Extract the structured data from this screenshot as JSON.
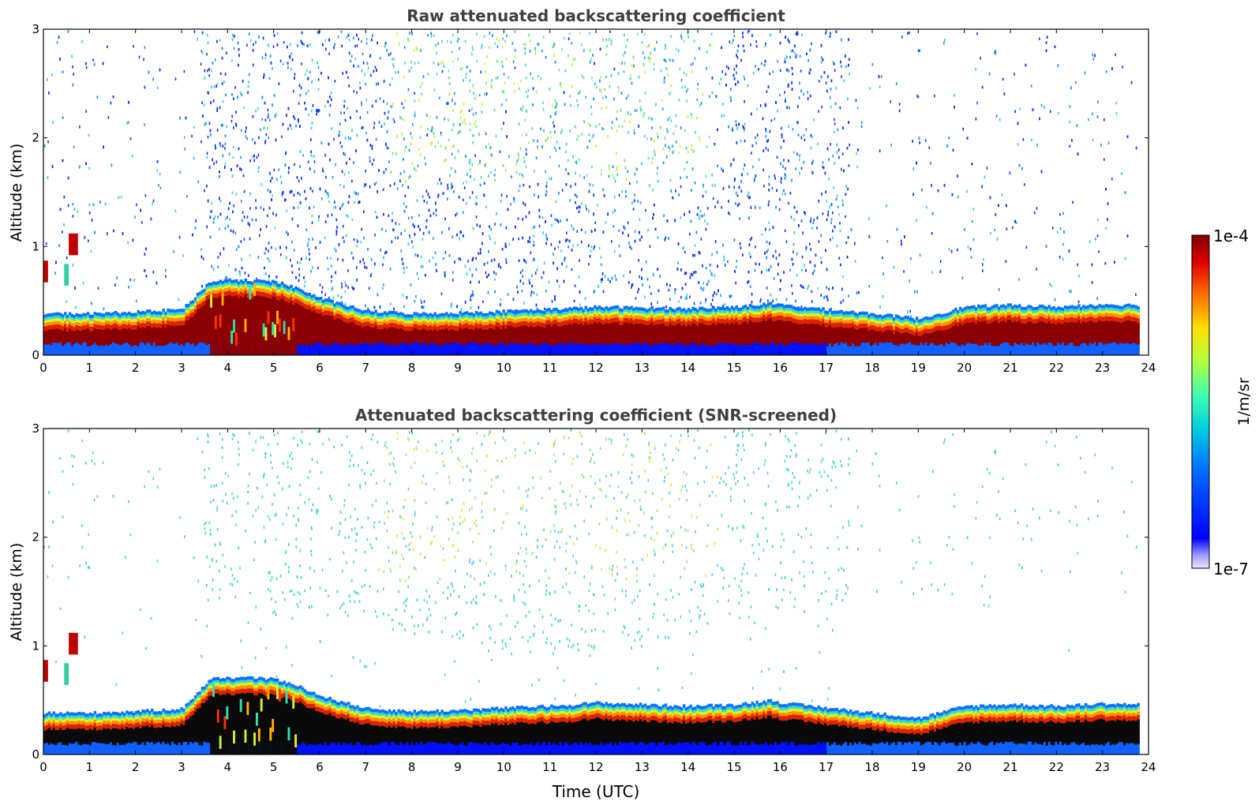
{
  "chart_data": [
    {
      "type": "heatmap",
      "title": "Raw attenuated backscattering coefficient",
      "xlabel": "",
      "ylabel": "Altitude (km)",
      "xlim": [
        0,
        24
      ],
      "ylim": [
        0,
        3
      ],
      "x_ticks": [
        "0",
        "1",
        "2",
        "3",
        "4",
        "5",
        "6",
        "7",
        "8",
        "9",
        "10",
        "11",
        "12",
        "13",
        "14",
        "15",
        "16",
        "17",
        "18",
        "19",
        "20",
        "21",
        "22",
        "23",
        "24"
      ],
      "y_ticks": [
        "0",
        "1",
        "2",
        "3"
      ],
      "color_scale": "log",
      "value_range": [
        "1e-7",
        "1e-4"
      ],
      "colormap": "jet",
      "boundary_layer_top_km": {
        "time_utc": [
          0,
          1,
          2,
          3,
          3.6,
          4,
          5,
          5.5,
          6,
          7,
          8,
          9,
          10,
          11,
          12,
          13,
          14,
          15,
          15.8,
          16,
          17,
          18,
          19,
          20,
          21,
          22,
          23,
          23.8
        ],
        "altitude_km": [
          0.3,
          0.3,
          0.32,
          0.35,
          0.68,
          0.7,
          0.68,
          0.6,
          0.48,
          0.33,
          0.3,
          0.31,
          0.33,
          0.35,
          0.38,
          0.37,
          0.36,
          0.38,
          0.42,
          0.4,
          0.35,
          0.3,
          0.24,
          0.38,
          0.4,
          0.38,
          0.41,
          0.4
        ]
      },
      "noise_density": "high",
      "aerosol_layer_2_3km": "strong"
    },
    {
      "type": "heatmap",
      "title": "Attenuated backscattering coefficient (SNR-screened)",
      "xlabel": "Time (UTC)",
      "ylabel": "Altitude (km)",
      "xlim": [
        0,
        24
      ],
      "ylim": [
        0,
        3
      ],
      "x_ticks": [
        "0",
        "1",
        "2",
        "3",
        "4",
        "5",
        "6",
        "7",
        "8",
        "9",
        "10",
        "11",
        "12",
        "13",
        "14",
        "15",
        "16",
        "17",
        "18",
        "19",
        "20",
        "21",
        "22",
        "23",
        "24"
      ],
      "y_ticks": [
        "0",
        "1",
        "2",
        "3"
      ],
      "color_scale": "log",
      "value_range": [
        "1e-7",
        "1e-4"
      ],
      "colormap": "jet",
      "boundary_layer_top_km": {
        "time_utc": [
          0,
          1,
          2,
          3,
          3.6,
          4,
          5,
          5.5,
          6,
          7,
          8,
          9,
          10,
          11,
          12,
          13,
          14,
          15,
          15.8,
          16,
          17,
          18,
          19,
          20,
          21,
          22,
          23,
          23.8
        ],
        "altitude_km": [
          0.3,
          0.3,
          0.32,
          0.35,
          0.7,
          0.72,
          0.7,
          0.62,
          0.5,
          0.35,
          0.32,
          0.33,
          0.36,
          0.38,
          0.42,
          0.4,
          0.38,
          0.4,
          0.45,
          0.42,
          0.36,
          0.3,
          0.24,
          0.38,
          0.4,
          0.38,
          0.41,
          0.4
        ]
      },
      "noise_density": "low",
      "aerosol_layer_2_3km": "screened"
    }
  ],
  "colorbar": {
    "max_label": "1e-4",
    "min_label": "1e-7",
    "unit_label": "1/m/sr"
  }
}
